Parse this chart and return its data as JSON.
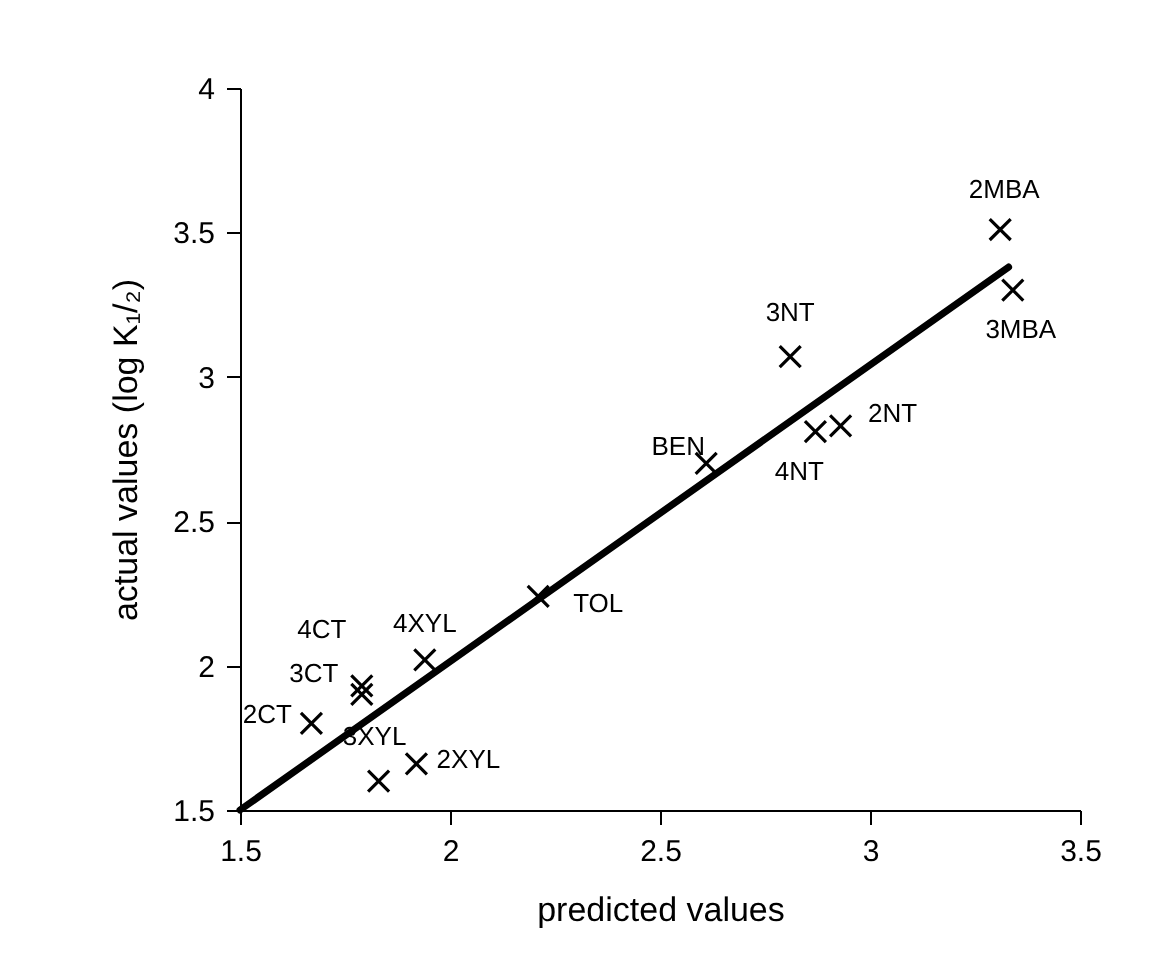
{
  "chart_data": {
    "type": "scatter",
    "xlabel": "predicted values",
    "ylabel": "actual values (log K₁/₂)",
    "xlim": [
      1.5,
      3.5
    ],
    "ylim": [
      1.5,
      4
    ],
    "xticks": [
      1.5,
      2,
      2.5,
      3,
      3.5
    ],
    "yticks": [
      1.5,
      2,
      2.5,
      3,
      3.5,
      4
    ],
    "grid": false,
    "series": [
      {
        "marker": "cross",
        "color": "#000000",
        "x": [
          1.67,
          1.79,
          1.79,
          1.83,
          1.92,
          1.94,
          2.21,
          2.61,
          2.81,
          2.87,
          2.93,
          3.31,
          3.34
        ],
        "values": [
          1.8,
          1.9,
          1.93,
          1.6,
          1.66,
          2.02,
          2.24,
          2.7,
          3.07,
          2.81,
          2.83,
          3.51,
          3.3
        ]
      },
      {
        "type": "line",
        "color": "#000000",
        "line_style": "solid",
        "x": [
          1.5,
          3.33
        ],
        "values": [
          1.5,
          3.38
        ]
      }
    ],
    "annotations": [
      {
        "text": "2CT",
        "x": 1.67,
        "y": 1.8
      },
      {
        "text": "3CT",
        "x": 1.79,
        "y": 1.9
      },
      {
        "text": "4CT",
        "x": 1.79,
        "y": 1.93
      },
      {
        "text": "3XYL",
        "x": 1.83,
        "y": 1.6
      },
      {
        "text": "2XYL",
        "x": 1.92,
        "y": 1.66
      },
      {
        "text": "4XYL",
        "x": 1.94,
        "y": 2.02
      },
      {
        "text": "TOL",
        "x": 2.21,
        "y": 2.24
      },
      {
        "text": "BEN",
        "x": 2.61,
        "y": 2.7
      },
      {
        "text": "3NT",
        "x": 2.81,
        "y": 3.07
      },
      {
        "text": "4NT",
        "x": 2.87,
        "y": 2.81
      },
      {
        "text": "2NT",
        "x": 2.93,
        "y": 2.83
      },
      {
        "text": "2MBA",
        "x": 3.31,
        "y": 3.51
      },
      {
        "text": "3MBA",
        "x": 3.34,
        "y": 3.3
      }
    ]
  }
}
